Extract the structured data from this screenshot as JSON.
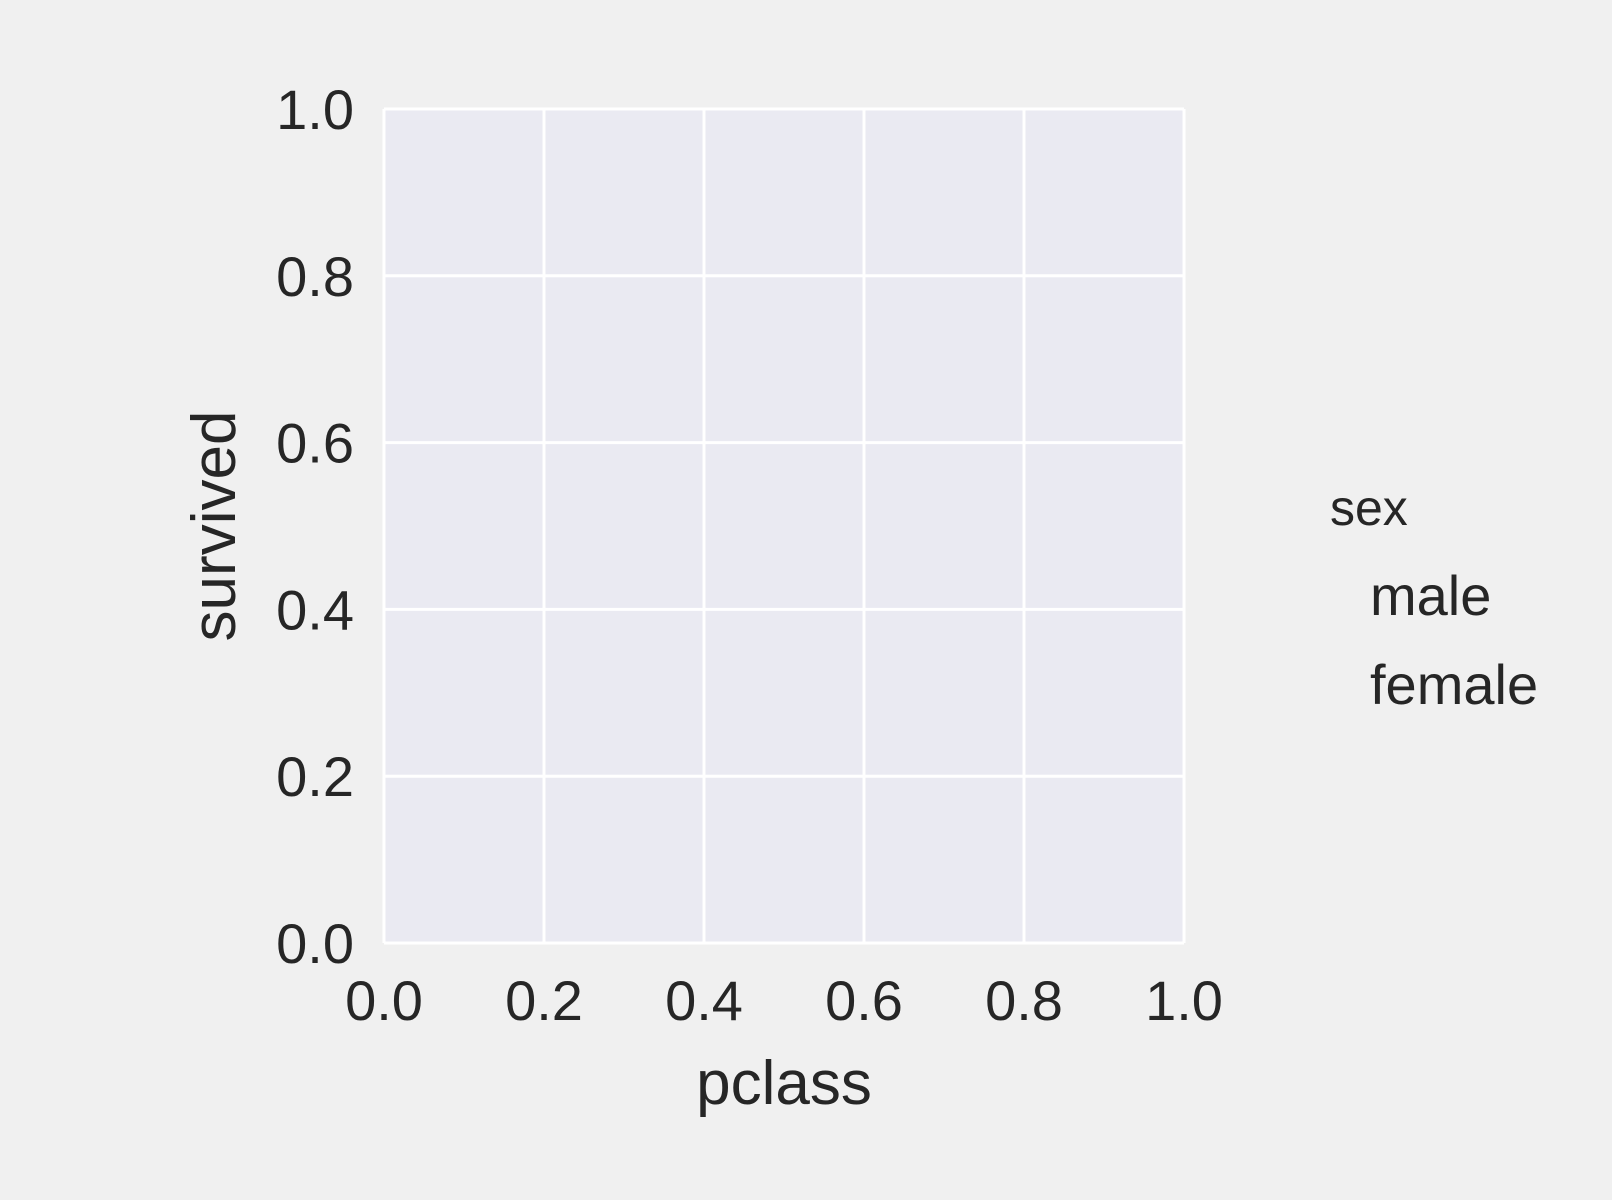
{
  "chart_data": {
    "type": "bar",
    "title": "",
    "xlabel": "pclass",
    "ylabel": "survived",
    "xlim": [
      0.0,
      1.0
    ],
    "ylim": [
      0.0,
      1.0
    ],
    "x_ticks": [
      "0.0",
      "0.2",
      "0.4",
      "0.6",
      "0.8",
      "1.0"
    ],
    "y_ticks": [
      "0.0",
      "0.2",
      "0.4",
      "0.6",
      "0.8",
      "1.0"
    ],
    "grid": true,
    "legend": {
      "title": "sex",
      "placement": "outside-right",
      "entries": [
        "male",
        "female"
      ]
    },
    "series": [
      {
        "name": "male",
        "values": []
      },
      {
        "name": "female",
        "values": []
      }
    ],
    "colors": {
      "figure_background": "#f0f0f0",
      "axes_background": "#eaeaf2",
      "grid": "#ffffff",
      "text": "#262626"
    }
  }
}
